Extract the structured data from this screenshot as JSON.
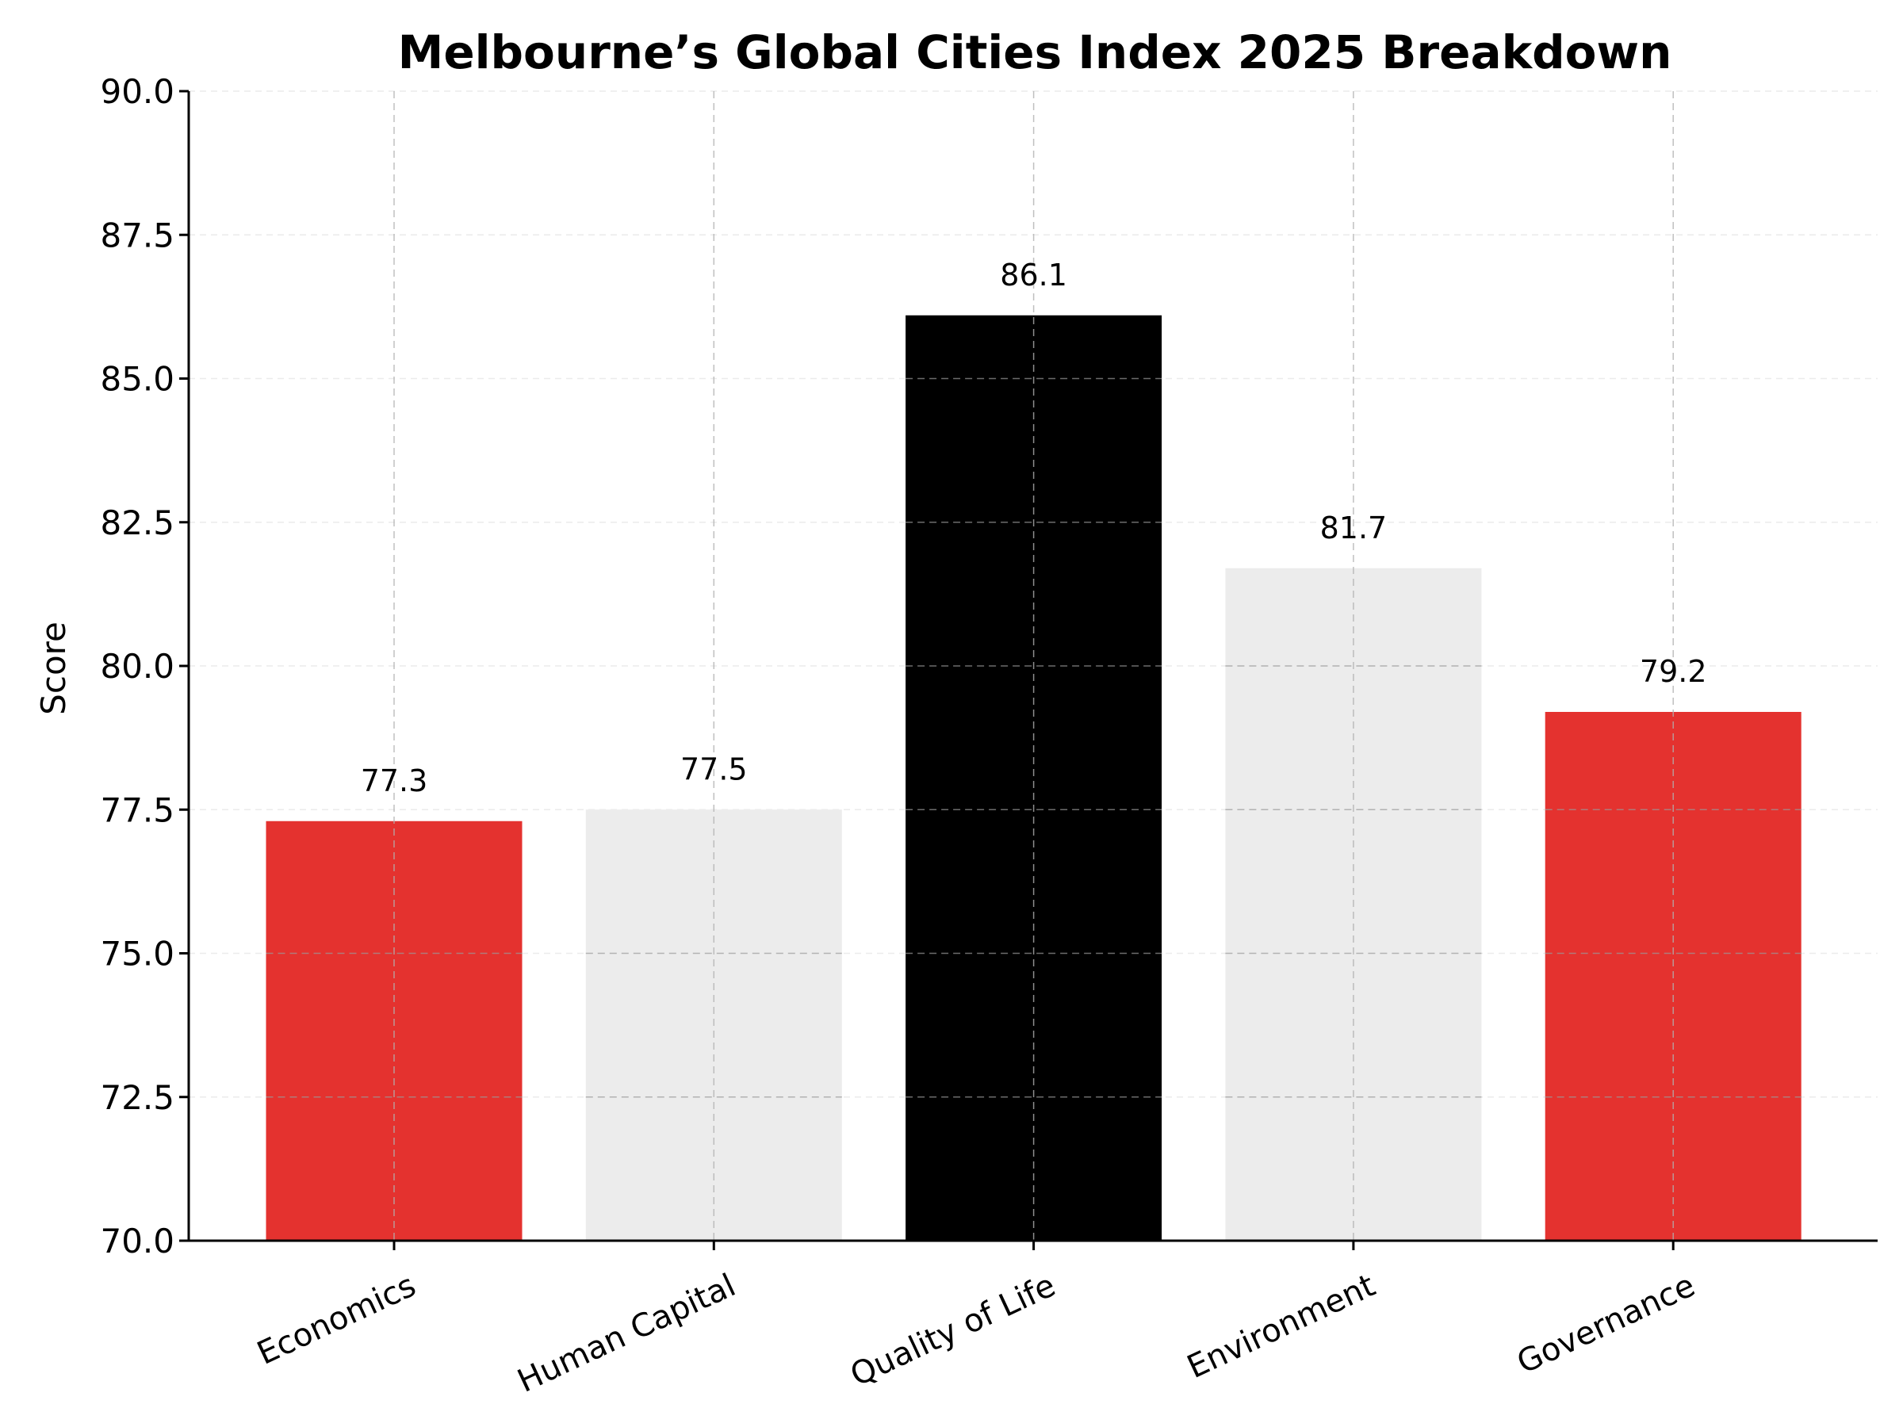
{
  "chart_data": {
    "type": "bar",
    "title": "Melbourne’s Global Cities Index 2025 Breakdown",
    "xlabel": "",
    "ylabel": "Score",
    "categories": [
      "Economics",
      "Human Capital",
      "Quality of Life",
      "Environment",
      "Governance"
    ],
    "values": [
      77.3,
      77.5,
      86.1,
      81.7,
      79.2
    ],
    "value_labels": [
      "77.3",
      "77.5",
      "86.1",
      "81.7",
      "79.2"
    ],
    "bar_colors": [
      "#e4322f",
      "#ececec",
      "#000000",
      "#ececec",
      "#e4322f"
    ],
    "ylim": [
      70,
      90
    ],
    "yticks": [
      70.0,
      72.5,
      75.0,
      77.5,
      80.0,
      82.5,
      85.0,
      87.5,
      90.0
    ],
    "ytick_labels": [
      "70.0",
      "72.5",
      "75.0",
      "77.5",
      "80.0",
      "82.5",
      "85.0",
      "87.5",
      "90.0"
    ],
    "grid": true,
    "legend": false
  }
}
